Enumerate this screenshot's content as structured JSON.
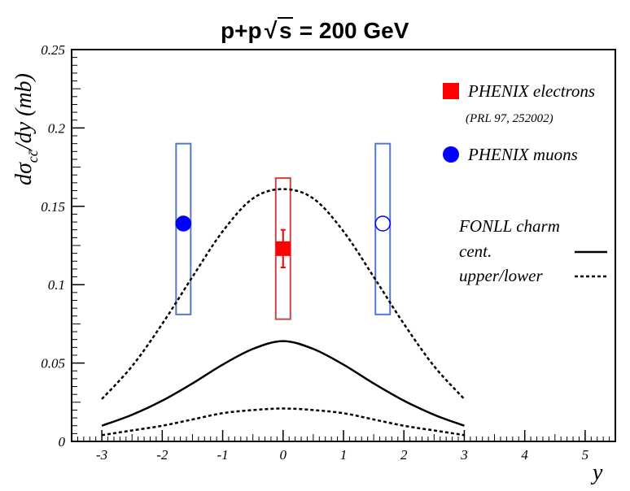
{
  "chart_data": {
    "type": "line",
    "title_prefix": "p+p",
    "title_sqrt_symbol": "√",
    "title_sqrt_arg": "s",
    "title_suffix": " = 200 GeV",
    "xlabel": "y",
    "ylabel_prefix": "dσ",
    "ylabel_subscript": "cc̄",
    "ylabel_suffix": "/dy (mb)",
    "xlim": [
      -3.5,
      5.5
    ],
    "ylim": [
      0,
      0.25
    ],
    "x_ticks": [
      -3,
      -2,
      -1,
      0,
      1,
      2,
      3,
      4,
      5
    ],
    "x_tick_labels": [
      "-3",
      "-2",
      "-1",
      "0",
      "1",
      "2",
      "3",
      "4",
      "5"
    ],
    "y_ticks": [
      0,
      0.05,
      0.1,
      0.15,
      0.2,
      0.25
    ],
    "y_tick_labels": [
      "0",
      "0.05",
      "0.1",
      "0.15",
      "0.2",
      "0.25"
    ],
    "curves": {
      "x": [
        -3,
        -2.5,
        -2,
        -1.5,
        -1,
        -0.5,
        0,
        0.5,
        1,
        1.5,
        2,
        2.5,
        3
      ],
      "central": [
        0.01,
        0.017,
        0.026,
        0.037,
        0.049,
        0.059,
        0.064,
        0.059,
        0.049,
        0.037,
        0.026,
        0.017,
        0.01
      ],
      "upper": [
        0.027,
        0.048,
        0.075,
        0.105,
        0.134,
        0.155,
        0.161,
        0.155,
        0.134,
        0.105,
        0.075,
        0.048,
        0.027
      ],
      "lower": [
        0.004,
        0.007,
        0.01,
        0.014,
        0.018,
        0.02,
        0.021,
        0.02,
        0.018,
        0.014,
        0.01,
        0.007,
        0.004
      ]
    },
    "muon_points": [
      {
        "x": -1.65,
        "y": 0.139,
        "syst_low": 0.081,
        "syst_high": 0.19,
        "filled": true
      },
      {
        "x": 1.65,
        "y": 0.139,
        "syst_low": 0.081,
        "syst_high": 0.19,
        "filled": false
      }
    ],
    "electron_point": {
      "x": 0,
      "y": 0.123,
      "stat_low": 0.111,
      "stat_high": 0.135,
      "syst_low": 0.078,
      "syst_high": 0.168
    },
    "legend": {
      "electrons": "PHENIX electrons",
      "electrons_ref": "(PRL 97, 252002)",
      "muons": "PHENIX muons",
      "fonll_title": "FONLL charm",
      "fonll_cent": "cent.",
      "fonll_band": "upper/lower"
    },
    "colors": {
      "electron": "#ff0000",
      "electron_box": "#cc4444",
      "muon": "#0000ff",
      "muon_box": "#5577cc",
      "curve": "#000000"
    }
  }
}
